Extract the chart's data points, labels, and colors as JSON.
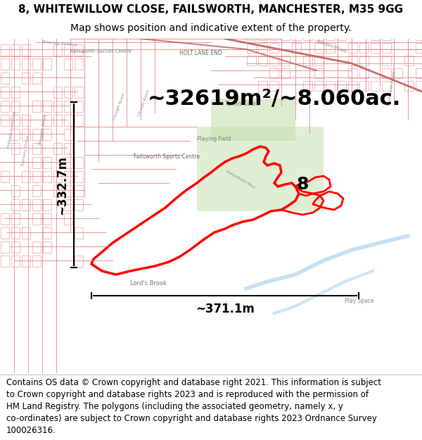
{
  "title_line1": "8, WHITEWILLOW CLOSE, FAILSWORTH, MANCHESTER, M35 9GG",
  "title_line2": "Map shows position and indicative extent of the property.",
  "area_text": "~32619m²/~8.060ac.",
  "dim_vertical": "~332.7m",
  "dim_horizontal": "~371.1m",
  "label_number": "8",
  "footer_text": "Contains OS data © Crown copyright and database right 2021. This information is subject to Crown copyright and database rights 2023 and is reproduced with the permission of HM Land Registry. The polygons (including the associated geometry, namely x, y co-ordinates) are subject to Crown copyright and database rights 2023 Ordnance Survey 100026316.",
  "map_bg": "#f5f0eb",
  "street_color": "#e8a0a0",
  "highlight_color": "#ff0000",
  "title_fontsize": 11,
  "subtitle_fontsize": 10,
  "area_fontsize": 22,
  "dim_fontsize": 12,
  "label_fontsize": 18,
  "footer_fontsize": 8.5,
  "fig_width": 6.0,
  "fig_height": 6.25,
  "dpi": 100
}
